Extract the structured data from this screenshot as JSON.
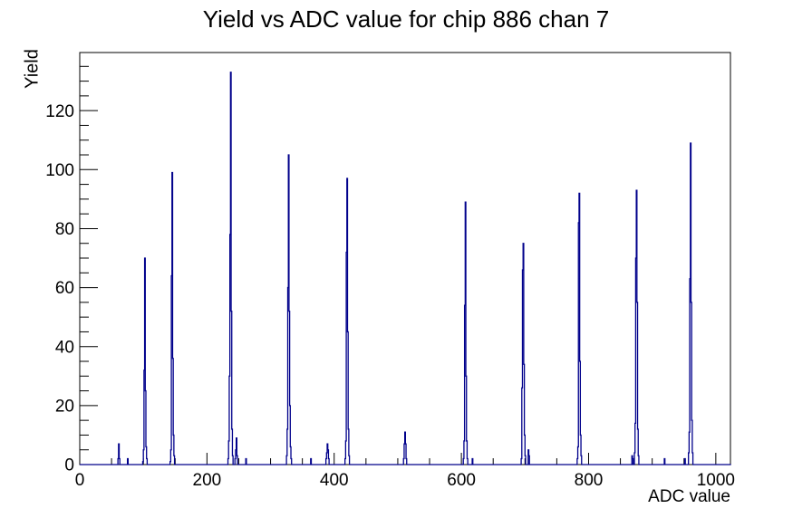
{
  "window": {
    "background_color": "#ffffff"
  },
  "chart_data": {
    "type": "bar",
    "title": "Yield vs ADC value for chip 886 chan 7",
    "xlabel": "ADC value",
    "ylabel": "Yield",
    "xlim": [
      0,
      1023
    ],
    "ylim": [
      0,
      139.7
    ],
    "x_major_ticks": [
      0,
      200,
      400,
      600,
      800,
      1000
    ],
    "x_minor_step": 50,
    "y_major_ticks": [
      0,
      20,
      40,
      60,
      80,
      100,
      120
    ],
    "y_minor_step": 5,
    "grid": false,
    "legend_position": "none",
    "bin_width": 1,
    "line_color": "#00008b",
    "axis_color": "#000000",
    "bins": [
      [
        60,
        2
      ],
      [
        61,
        7
      ],
      [
        62,
        2
      ],
      [
        75,
        2
      ],
      [
        99,
        1
      ],
      [
        100,
        5
      ],
      [
        101,
        32
      ],
      [
        102,
        70
      ],
      [
        103,
        25
      ],
      [
        104,
        6
      ],
      [
        105,
        2
      ],
      [
        142,
        1
      ],
      [
        143,
        5
      ],
      [
        144,
        64
      ],
      [
        145,
        99
      ],
      [
        146,
        36
      ],
      [
        147,
        10
      ],
      [
        148,
        3
      ],
      [
        233,
        2
      ],
      [
        234,
        8
      ],
      [
        235,
        30
      ],
      [
        236,
        78
      ],
      [
        237,
        133
      ],
      [
        238,
        52
      ],
      [
        239,
        12
      ],
      [
        240,
        3
      ],
      [
        244,
        2
      ],
      [
        245,
        5
      ],
      [
        246,
        9
      ],
      [
        247,
        3
      ],
      [
        261,
        2
      ],
      [
        325,
        3
      ],
      [
        326,
        12
      ],
      [
        327,
        60
      ],
      [
        328,
        105
      ],
      [
        329,
        52
      ],
      [
        330,
        20
      ],
      [
        331,
        6
      ],
      [
        332,
        2
      ],
      [
        363,
        2
      ],
      [
        387,
        2
      ],
      [
        388,
        4
      ],
      [
        389,
        7
      ],
      [
        390,
        5
      ],
      [
        391,
        2
      ],
      [
        417,
        2
      ],
      [
        418,
        8
      ],
      [
        419,
        72
      ],
      [
        420,
        97
      ],
      [
        421,
        45
      ],
      [
        422,
        12
      ],
      [
        423,
        3
      ],
      [
        509,
        2
      ],
      [
        510,
        7
      ],
      [
        511,
        11
      ],
      [
        512,
        7
      ],
      [
        513,
        2
      ],
      [
        603,
        2
      ],
      [
        604,
        8
      ],
      [
        605,
        54
      ],
      [
        606,
        89
      ],
      [
        607,
        30
      ],
      [
        608,
        8
      ],
      [
        609,
        2
      ],
      [
        617,
        2
      ],
      [
        694,
        2
      ],
      [
        695,
        26
      ],
      [
        696,
        66
      ],
      [
        697,
        75
      ],
      [
        698,
        34
      ],
      [
        699,
        10
      ],
      [
        700,
        3
      ],
      [
        705,
        5
      ],
      [
        706,
        3
      ],
      [
        782,
        2
      ],
      [
        783,
        6
      ],
      [
        784,
        82
      ],
      [
        785,
        92
      ],
      [
        786,
        35
      ],
      [
        787,
        10
      ],
      [
        788,
        3
      ],
      [
        868,
        3
      ],
      [
        869,
        2
      ],
      [
        872,
        4
      ],
      [
        873,
        14
      ],
      [
        874,
        70
      ],
      [
        875,
        93
      ],
      [
        876,
        55
      ],
      [
        877,
        12
      ],
      [
        878,
        3
      ],
      [
        919,
        2
      ],
      [
        951,
        2
      ],
      [
        957,
        4
      ],
      [
        958,
        11
      ],
      [
        959,
        63
      ],
      [
        960,
        109
      ],
      [
        961,
        55
      ],
      [
        962,
        15
      ],
      [
        963,
        4
      ]
    ]
  }
}
